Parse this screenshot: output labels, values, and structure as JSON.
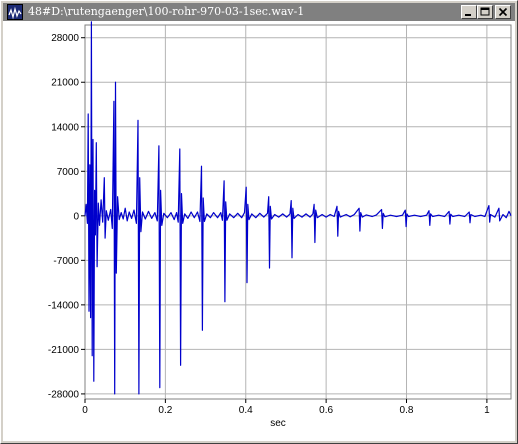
{
  "window": {
    "title": "48#D:\\rutengaenger\\100-rohr-970-03-1sec.wav-1",
    "buttons": {
      "minimize_icon": "minimize-icon",
      "maximize_icon": "maximize-icon",
      "close_icon": "close-icon"
    },
    "app_icon": "waveform-app-icon"
  },
  "colors": {
    "titlebar": "#808080",
    "waveform": "#0000cc",
    "grid": "#b4b4b4",
    "background": "#ffffff"
  },
  "chart_data": {
    "type": "line",
    "title": "",
    "xlabel": "sec",
    "ylabel": "",
    "xlim": [
      0,
      1.06
    ],
    "ylim": [
      -28800,
      30000
    ],
    "x_ticks": [
      0,
      0.2,
      0.4,
      0.6,
      0.8,
      1
    ],
    "x_tick_labels": [
      "0",
      "0.2",
      "0.4",
      "0.6",
      "0.8",
      "1"
    ],
    "y_ticks": [
      28000,
      21000,
      14000,
      7000,
      0,
      -7000,
      -14000,
      -21000,
      -28000
    ],
    "y_tick_labels": [
      "28000",
      "21000",
      "14000",
      "7000",
      "0",
      "-7000",
      "-14000",
      "-21000",
      "-28000"
    ],
    "grid": true,
    "series": [
      {
        "values": [
          [
            0.0,
            0
          ],
          [
            0.003,
            1800
          ],
          [
            0.006,
            -1200
          ],
          [
            0.008,
            16000
          ],
          [
            0.01,
            -15000
          ],
          [
            0.012,
            8000
          ],
          [
            0.014,
            -16000
          ],
          [
            0.016,
            30500
          ],
          [
            0.018,
            -22000
          ],
          [
            0.02,
            12000
          ],
          [
            0.022,
            -26000
          ],
          [
            0.024,
            4000
          ],
          [
            0.026,
            -3000
          ],
          [
            0.028,
            11500
          ],
          [
            0.03,
            -8000
          ],
          [
            0.033,
            2000
          ],
          [
            0.036,
            -1500
          ],
          [
            0.04,
            2500
          ],
          [
            0.044,
            -1000
          ],
          [
            0.048,
            6000
          ],
          [
            0.05,
            -3500
          ],
          [
            0.053,
            800
          ],
          [
            0.058,
            -700
          ],
          [
            0.064,
            1000
          ],
          [
            0.068,
            -2000
          ],
          [
            0.072,
            18000
          ],
          [
            0.074,
            -28000
          ],
          [
            0.076,
            21000
          ],
          [
            0.078,
            -9000
          ],
          [
            0.081,
            3000
          ],
          [
            0.085,
            -600
          ],
          [
            0.09,
            500
          ],
          [
            0.095,
            -500
          ],
          [
            0.1,
            1200
          ],
          [
            0.105,
            -800
          ],
          [
            0.11,
            600
          ],
          [
            0.116,
            -400
          ],
          [
            0.122,
            900
          ],
          [
            0.128,
            -1200
          ],
          [
            0.132,
            15000
          ],
          [
            0.134,
            -28000
          ],
          [
            0.136,
            6000
          ],
          [
            0.139,
            -2500
          ],
          [
            0.143,
            600
          ],
          [
            0.15,
            -500
          ],
          [
            0.158,
            700
          ],
          [
            0.166,
            -400
          ],
          [
            0.174,
            500
          ],
          [
            0.18,
            -800
          ],
          [
            0.184,
            11000
          ],
          [
            0.186,
            -27000
          ],
          [
            0.188,
            4000
          ],
          [
            0.191,
            -1500
          ],
          [
            0.196,
            400
          ],
          [
            0.205,
            -300
          ],
          [
            0.214,
            500
          ],
          [
            0.222,
            -600
          ],
          [
            0.228,
            500
          ],
          [
            0.232,
            -1000
          ],
          [
            0.236,
            10500
          ],
          [
            0.238,
            -23500
          ],
          [
            0.24,
            3500
          ],
          [
            0.243,
            -1200
          ],
          [
            0.248,
            300
          ],
          [
            0.256,
            -400
          ],
          [
            0.264,
            600
          ],
          [
            0.272,
            -300
          ],
          [
            0.28,
            600
          ],
          [
            0.286,
            -900
          ],
          [
            0.29,
            7800
          ],
          [
            0.292,
            -18000
          ],
          [
            0.294,
            2800
          ],
          [
            0.297,
            -900
          ],
          [
            0.303,
            300
          ],
          [
            0.312,
            -300
          ],
          [
            0.32,
            500
          ],
          [
            0.33,
            -300
          ],
          [
            0.338,
            500
          ],
          [
            0.342,
            -700
          ],
          [
            0.346,
            5500
          ],
          [
            0.348,
            -13500
          ],
          [
            0.35,
            2200
          ],
          [
            0.353,
            -700
          ],
          [
            0.36,
            300
          ],
          [
            0.37,
            -300
          ],
          [
            0.38,
            400
          ],
          [
            0.39,
            -300
          ],
          [
            0.397,
            500
          ],
          [
            0.401,
            4500
          ],
          [
            0.403,
            -10500
          ],
          [
            0.405,
            1800
          ],
          [
            0.408,
            -600
          ],
          [
            0.415,
            300
          ],
          [
            0.425,
            -300
          ],
          [
            0.435,
            400
          ],
          [
            0.445,
            -200
          ],
          [
            0.454,
            400
          ],
          [
            0.457,
            3000
          ],
          [
            0.459,
            -8200
          ],
          [
            0.461,
            1500
          ],
          [
            0.464,
            -500
          ],
          [
            0.472,
            200
          ],
          [
            0.482,
            -200
          ],
          [
            0.492,
            300
          ],
          [
            0.502,
            -200
          ],
          [
            0.51,
            300
          ],
          [
            0.513,
            2400
          ],
          [
            0.515,
            -6600
          ],
          [
            0.517,
            1200
          ],
          [
            0.52,
            -400
          ],
          [
            0.53,
            200
          ],
          [
            0.54,
            -200
          ],
          [
            0.55,
            300
          ],
          [
            0.56,
            -200
          ],
          [
            0.567,
            300
          ],
          [
            0.57,
            1800
          ],
          [
            0.572,
            -4200
          ],
          [
            0.574,
            900
          ],
          [
            0.578,
            -300
          ],
          [
            0.59,
            200
          ],
          [
            0.6,
            -200
          ],
          [
            0.61,
            200
          ],
          [
            0.62,
            -100
          ],
          [
            0.627,
            1500
          ],
          [
            0.629,
            -3200
          ],
          [
            0.631,
            700
          ],
          [
            0.635,
            -200
          ],
          [
            0.65,
            200
          ],
          [
            0.66,
            -150
          ],
          [
            0.67,
            200
          ],
          [
            0.682,
            1200
          ],
          [
            0.684,
            -2400
          ],
          [
            0.686,
            500
          ],
          [
            0.69,
            -200
          ],
          [
            0.7,
            150
          ],
          [
            0.715,
            -100
          ],
          [
            0.725,
            150
          ],
          [
            0.738,
            1000
          ],
          [
            0.74,
            -2000
          ],
          [
            0.742,
            400
          ],
          [
            0.746,
            -150
          ],
          [
            0.76,
            100
          ],
          [
            0.775,
            -100
          ],
          [
            0.79,
            100
          ],
          [
            0.797,
            900
          ],
          [
            0.799,
            -1700
          ],
          [
            0.801,
            300
          ],
          [
            0.805,
            -100
          ],
          [
            0.82,
            100
          ],
          [
            0.835,
            -100
          ],
          [
            0.85,
            100
          ],
          [
            0.856,
            800
          ],
          [
            0.858,
            -1500
          ],
          [
            0.86,
            300
          ],
          [
            0.865,
            -100
          ],
          [
            0.88,
            100
          ],
          [
            0.895,
            -100
          ],
          [
            0.906,
            700
          ],
          [
            0.908,
            -1300
          ],
          [
            0.91,
            250
          ],
          [
            0.915,
            -100
          ],
          [
            0.93,
            100
          ],
          [
            0.945,
            -100
          ],
          [
            0.956,
            600
          ],
          [
            0.958,
            -1100
          ],
          [
            0.96,
            200
          ],
          [
            0.97,
            -100
          ],
          [
            0.985,
            100
          ],
          [
            0.995,
            -100
          ],
          [
            1.005,
            1600
          ],
          [
            1.007,
            -1000
          ],
          [
            1.009,
            200
          ],
          [
            1.02,
            -200
          ],
          [
            1.03,
            1200
          ],
          [
            1.032,
            -800
          ],
          [
            1.04,
            200
          ],
          [
            1.048,
            -300
          ],
          [
            1.055,
            700
          ],
          [
            1.06,
            0
          ]
        ]
      }
    ]
  }
}
